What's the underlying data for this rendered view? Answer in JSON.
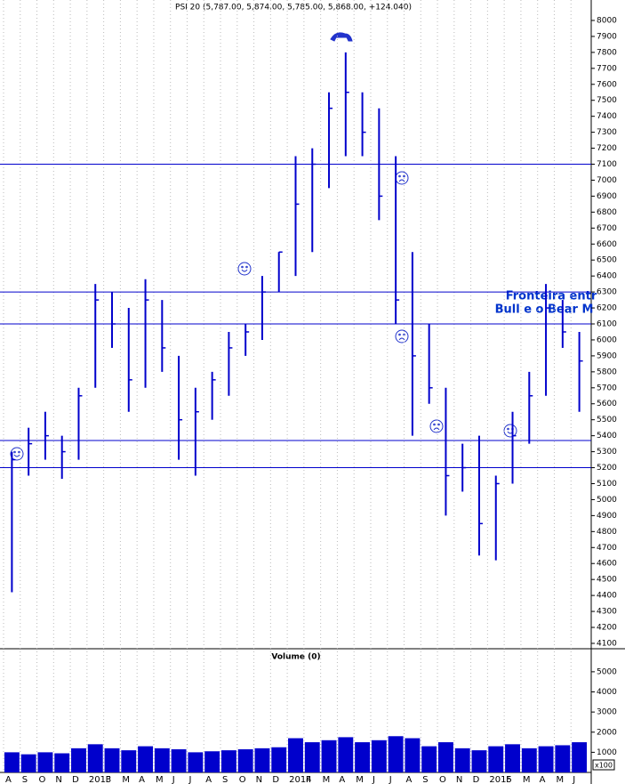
{
  "chart_data": [
    {
      "type": "ohlc",
      "title": "PSI 20 (5,787.00, 5,874.00, 5,785.00, 5,868.00, +124.040)",
      "annotations": [
        "Fronteira entr",
        "Bull e o Bear M"
      ],
      "categories": [
        "A",
        "S",
        "O",
        "N",
        "D",
        "2013",
        "F",
        "M",
        "A",
        "M",
        "J",
        "J",
        "A",
        "S",
        "O",
        "N",
        "D",
        "2014",
        "F",
        "M",
        "A",
        "M",
        "J",
        "J",
        "A",
        "S",
        "O",
        "N",
        "D",
        "2015",
        "F",
        "M",
        "A",
        "M",
        "J"
      ],
      "color": "#0000cc",
      "series": [
        {
          "name": "High",
          "values": [
            5300,
            5450,
            5550,
            5400,
            5700,
            6350,
            6300,
            6200,
            6380,
            6250,
            5900,
            5700,
            5800,
            6050,
            6100,
            6400,
            6550,
            7150,
            7200,
            7550,
            7800,
            7550,
            7450,
            7150,
            6550,
            6100,
            5700,
            5350,
            5400,
            5150,
            5550,
            5800,
            6350,
            6250,
            6050
          ]
        },
        {
          "name": "Low",
          "values": [
            4420,
            5150,
            5250,
            5130,
            5250,
            5700,
            5950,
            5550,
            5700,
            5800,
            5250,
            5150,
            5500,
            5650,
            5900,
            6000,
            6300,
            6400,
            6550,
            6950,
            7150,
            7150,
            6750,
            6100,
            5400,
            5600,
            4900,
            5050,
            4650,
            4620,
            5100,
            5350,
            5650,
            5950,
            5550
          ]
        },
        {
          "name": "Close",
          "values": [
            5250,
            5350,
            5400,
            5300,
            5650,
            6250,
            6100,
            5750,
            6250,
            5950,
            5500,
            5550,
            5750,
            5950,
            6050,
            6300,
            6550,
            6850,
            7100,
            7450,
            7550,
            7300,
            6900,
            6250,
            5900,
            5700,
            5150,
            5200,
            4850,
            5100,
            5400,
            5650,
            6200,
            6050,
            5868
          ]
        }
      ],
      "hlines": [
        7100,
        6300,
        6100,
        5370,
        5200
      ],
      "ylim": [
        4072,
        8128
      ],
      "yticks": [
        4100,
        4200,
        4300,
        4400,
        4500,
        4600,
        4700,
        4800,
        4900,
        5000,
        5100,
        5200,
        5300,
        5400,
        5500,
        5600,
        5700,
        5800,
        5900,
        6000,
        6100,
        6200,
        6300,
        6400,
        6500,
        6600,
        6700,
        6800,
        6900,
        7000,
        7100,
        7200,
        7300,
        7400,
        7500,
        7600,
        7700,
        7800,
        7900,
        8000
      ]
    },
    {
      "type": "bar",
      "title": "Volume (0)",
      "unit_label": "x100",
      "color": "#0000cc",
      "values": [
        1000,
        900,
        1000,
        950,
        1200,
        1400,
        1200,
        1100,
        1300,
        1200,
        1150,
        1000,
        1050,
        1100,
        1150,
        1200,
        1250,
        1700,
        1500,
        1600,
        1750,
        1500,
        1600,
        1800,
        1700,
        1300,
        1500,
        1200,
        1100,
        1300,
        1400,
        1200,
        1300,
        1350,
        1500
      ],
      "ylim": [
        0,
        6100
      ],
      "yticks": [
        1000,
        2000,
        3000,
        4000,
        5000
      ]
    }
  ]
}
